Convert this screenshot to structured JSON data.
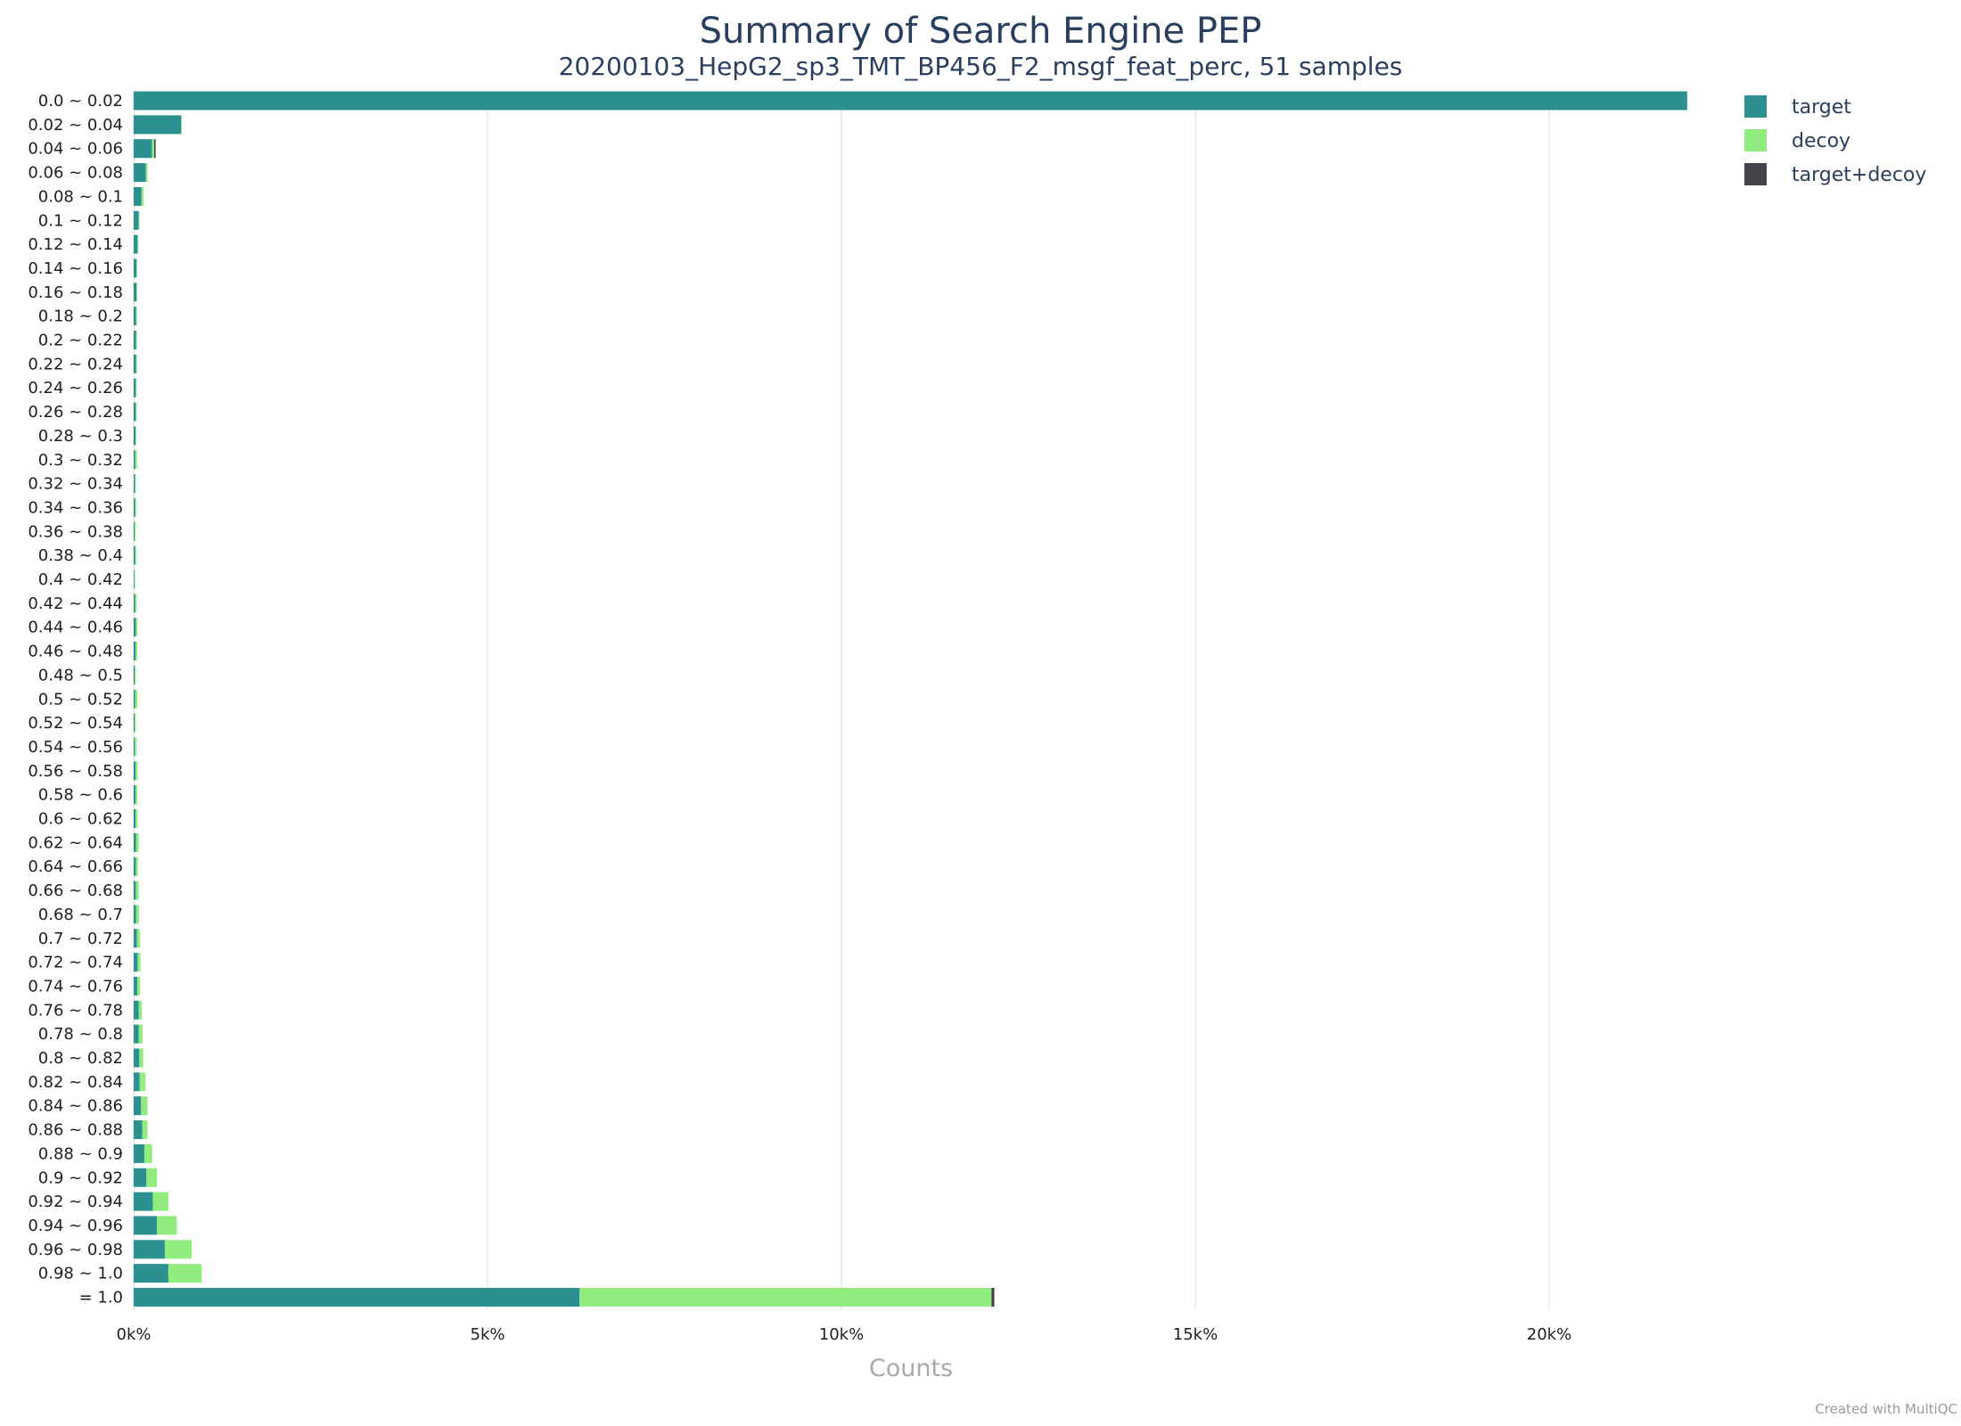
{
  "chart_data": {
    "type": "bar",
    "orientation": "horizontal",
    "stacked": true,
    "title": "Summary of Search Engine PEP",
    "subtitle": "20200103_HepG2_sp3_TMT_BP456_F2_msgf_feat_perc, 51 samples",
    "xlabel": "Counts",
    "ylabel": "",
    "xlim": [
      0,
      25000
    ],
    "xticks": [
      0,
      5000,
      10000,
      15000,
      20000
    ],
    "xtick_labels": [
      "0k%",
      "5k%",
      "10k%",
      "15k%",
      "20k%"
    ],
    "grid": true,
    "legend_position": "top-right",
    "categories": [
      "0.0 ~ 0.02",
      "0.02 ~ 0.04",
      "0.04 ~ 0.06",
      "0.06 ~ 0.08",
      "0.08 ~ 0.1",
      "0.1 ~ 0.12",
      "0.12 ~ 0.14",
      "0.14 ~ 0.16",
      "0.16 ~ 0.18",
      "0.18 ~ 0.2",
      "0.2 ~ 0.22",
      "0.22 ~ 0.24",
      "0.24 ~ 0.26",
      "0.26 ~ 0.28",
      "0.28 ~ 0.3",
      "0.3 ~ 0.32",
      "0.32 ~ 0.34",
      "0.34 ~ 0.36",
      "0.36 ~ 0.38",
      "0.38 ~ 0.4",
      "0.4 ~ 0.42",
      "0.42 ~ 0.44",
      "0.44 ~ 0.46",
      "0.46 ~ 0.48",
      "0.48 ~ 0.5",
      "0.5 ~ 0.52",
      "0.52 ~ 0.54",
      "0.54 ~ 0.56",
      "0.56 ~ 0.58",
      "0.58 ~ 0.6",
      "0.6 ~ 0.62",
      "0.62 ~ 0.64",
      "0.64 ~ 0.66",
      "0.66 ~ 0.68",
      "0.68 ~ 0.7",
      "0.7 ~ 0.72",
      "0.72 ~ 0.74",
      "0.74 ~ 0.76",
      "0.76 ~ 0.78",
      "0.78 ~ 0.8",
      "0.8 ~ 0.82",
      "0.82 ~ 0.84",
      "0.84 ~ 0.86",
      "0.86 ~ 0.88",
      "0.88 ~ 0.9",
      "0.9 ~ 0.92",
      "0.92 ~ 0.94",
      "0.94 ~ 0.96",
      "0.96 ~ 0.98",
      "0.98 ~ 1.0",
      "= 1.0"
    ],
    "series": [
      {
        "name": "target",
        "color": "#2b908f",
        "values": [
          21950,
          670,
          260,
          170,
          110,
          70,
          55,
          40,
          40,
          35,
          35,
          35,
          30,
          30,
          25,
          22,
          18,
          20,
          12,
          20,
          10,
          20,
          30,
          25,
          15,
          20,
          15,
          15,
          25,
          25,
          25,
          35,
          30,
          30,
          35,
          45,
          55,
          50,
          70,
          70,
          80,
          85,
          105,
          120,
          150,
          180,
          270,
          330,
          440,
          490,
          6300
        ]
      },
      {
        "name": "decoy",
        "color": "#90ed7d",
        "values": [
          0,
          10,
          30,
          25,
          30,
          10,
          10,
          10,
          8,
          8,
          8,
          8,
          10,
          10,
          10,
          25,
          12,
          15,
          15,
          15,
          8,
          20,
          20,
          25,
          15,
          30,
          15,
          25,
          30,
          25,
          30,
          35,
          30,
          40,
          40,
          45,
          40,
          40,
          45,
          55,
          55,
          80,
          90,
          75,
          110,
          150,
          220,
          280,
          380,
          470,
          5820
        ]
      },
      {
        "name": "target+decoy",
        "color": "#434348",
        "values": [
          0,
          0,
          20,
          0,
          0,
          0,
          0,
          0,
          0,
          0,
          0,
          0,
          0,
          0,
          0,
          0,
          0,
          0,
          0,
          0,
          0,
          0,
          0,
          0,
          0,
          0,
          0,
          0,
          0,
          0,
          0,
          0,
          0,
          0,
          0,
          0,
          0,
          0,
          0,
          0,
          0,
          0,
          0,
          0,
          0,
          0,
          0,
          0,
          0,
          0,
          40
        ]
      }
    ]
  },
  "footer": {
    "credit": "Created with MultiQC"
  }
}
